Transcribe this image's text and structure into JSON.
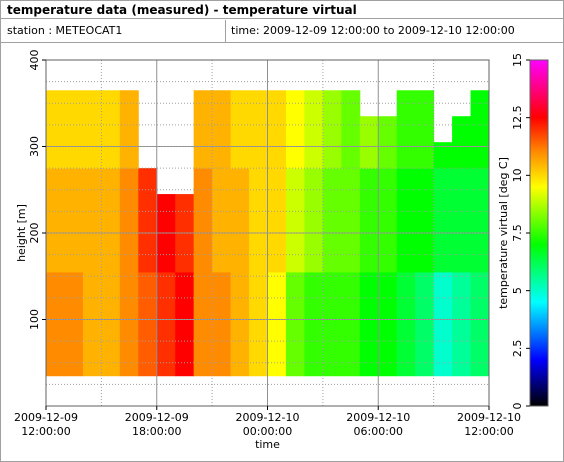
{
  "header": {
    "title": "temperature data (measured) - temperature virtual",
    "station": "station : METEOCAT1",
    "time": "time: 2009-12-09 12:00:00 to 2009-12-10 12:00:00"
  },
  "chart_data": {
    "type": "heatmap",
    "xlabel": "time",
    "ylabel": "height [m]",
    "colorbar_label": "temperature virtual [deg C]",
    "x": [
      "2009-12-09 12:00:00",
      "2009-12-09 13:00:00",
      "2009-12-09 14:00:00",
      "2009-12-09 15:00:00",
      "2009-12-09 16:00:00",
      "2009-12-09 17:00:00",
      "2009-12-09 18:00:00",
      "2009-12-09 19:00:00",
      "2009-12-09 20:00:00",
      "2009-12-09 21:00:00",
      "2009-12-09 22:00:00",
      "2009-12-09 23:00:00",
      "2009-12-10 00:00:00",
      "2009-12-10 01:00:00",
      "2009-12-10 02:00:00",
      "2009-12-10 03:00:00",
      "2009-12-10 04:00:00",
      "2009-12-10 05:00:00",
      "2009-12-10 06:00:00",
      "2009-12-10 07:00:00",
      "2009-12-10 08:00:00",
      "2009-12-10 09:00:00",
      "2009-12-10 10:00:00",
      "2009-12-10 11:00:00",
      "2009-12-10 12:00:00"
    ],
    "y": [
      35,
      65,
      95,
      125,
      155,
      185,
      215,
      245,
      275,
      305,
      335,
      365
    ],
    "z": [
      [
        11,
        11,
        10.5,
        10.5,
        11,
        11.5,
        12,
        12.5,
        11,
        11,
        10.5,
        10,
        9.5,
        8,
        7.5,
        7.5,
        7.5,
        7,
        7,
        6.5,
        6,
        5,
        5.5,
        6
      ],
      [
        11,
        11,
        10.5,
        10.5,
        11,
        11.5,
        12,
        12.5,
        11,
        11,
        10.5,
        10,
        9.5,
        8,
        7.5,
        7.5,
        7.5,
        7,
        7,
        6.5,
        6,
        5,
        5.5,
        6
      ],
      [
        11,
        11,
        10.5,
        10.5,
        11,
        11.5,
        12,
        12.5,
        11,
        11,
        10.5,
        10,
        9.5,
        8,
        7.5,
        7.5,
        7.5,
        7,
        7,
        6.5,
        6,
        5,
        5.5,
        6
      ],
      [
        11,
        11,
        10.5,
        10.5,
        11,
        11.5,
        12,
        12.5,
        11,
        11,
        10.5,
        10,
        9.5,
        8,
        7.5,
        7.5,
        7.5,
        7,
        7,
        6.5,
        6,
        5,
        5.5,
        6
      ],
      [
        10.5,
        10.5,
        10.5,
        10.5,
        11,
        12,
        12.5,
        12,
        11,
        10.5,
        10.5,
        10,
        10,
        9,
        8.5,
        8,
        8,
        7.5,
        7.5,
        7,
        7,
        6.5,
        6.5,
        6.5
      ],
      [
        10.5,
        10.5,
        10.5,
        10.5,
        11,
        12,
        12.5,
        12,
        11,
        10.5,
        10.5,
        10,
        10,
        9,
        8.5,
        8,
        8,
        7.5,
        7.5,
        7,
        7,
        6.5,
        6.5,
        6.5
      ],
      [
        10.5,
        10.5,
        10.5,
        10.5,
        11,
        12,
        12.5,
        12,
        11,
        10.5,
        10.5,
        10,
        10,
        9,
        8.5,
        8,
        8,
        7.5,
        7.5,
        7,
        7,
        6.5,
        6.5,
        6.5
      ],
      [
        10.5,
        10.5,
        10.5,
        10.5,
        11,
        12,
        null,
        null,
        11,
        10.5,
        10.5,
        10,
        10,
        9,
        8.5,
        8,
        8,
        7.5,
        7.5,
        7,
        7,
        6.5,
        6.5,
        6.5
      ],
      [
        10,
        10,
        10,
        10,
        10.5,
        null,
        null,
        null,
        10.5,
        10.5,
        10,
        10,
        10,
        9.5,
        9,
        8.5,
        8,
        8.5,
        8,
        7.5,
        7.5,
        7,
        7,
        7
      ],
      [
        10,
        10,
        10,
        10,
        10.5,
        null,
        null,
        null,
        10.5,
        10.5,
        10,
        10,
        10,
        9.5,
        9,
        8.5,
        8,
        8.5,
        8,
        7.5,
        7.5,
        null,
        7,
        7
      ],
      [
        10,
        10,
        10,
        10,
        10.5,
        null,
        null,
        null,
        10.5,
        10.5,
        10,
        10,
        10,
        9.5,
        9,
        8.5,
        8,
        null,
        null,
        7.5,
        7.5,
        null,
        null,
        7
      ]
    ],
    "xlim": [
      "2009-12-09 12:00:00",
      "2009-12-10 12:00:00"
    ],
    "xticks": [
      "2009-12-09 12:00:00",
      "2009-12-09 18:00:00",
      "2009-12-10 00:00:00",
      "2009-12-10 06:00:00",
      "2009-12-10 12:00:00"
    ],
    "ylim": [
      0,
      400
    ],
    "yticks": [
      100,
      200,
      300,
      400
    ],
    "clim": [
      0,
      15
    ],
    "cticks": [
      0,
      2.5,
      5,
      7.5,
      10,
      12.5,
      15
    ],
    "colorscale": [
      [
        0,
        "#000000"
      ],
      [
        2,
        "#0000ff"
      ],
      [
        4.5,
        "#00ffff"
      ],
      [
        7,
        "#00ff00"
      ],
      [
        9.5,
        "#ffff00"
      ],
      [
        11,
        "#ff8c00"
      ],
      [
        12.5,
        "#ff0000"
      ],
      [
        15,
        "#ff00ff"
      ]
    ],
    "grid": true
  }
}
